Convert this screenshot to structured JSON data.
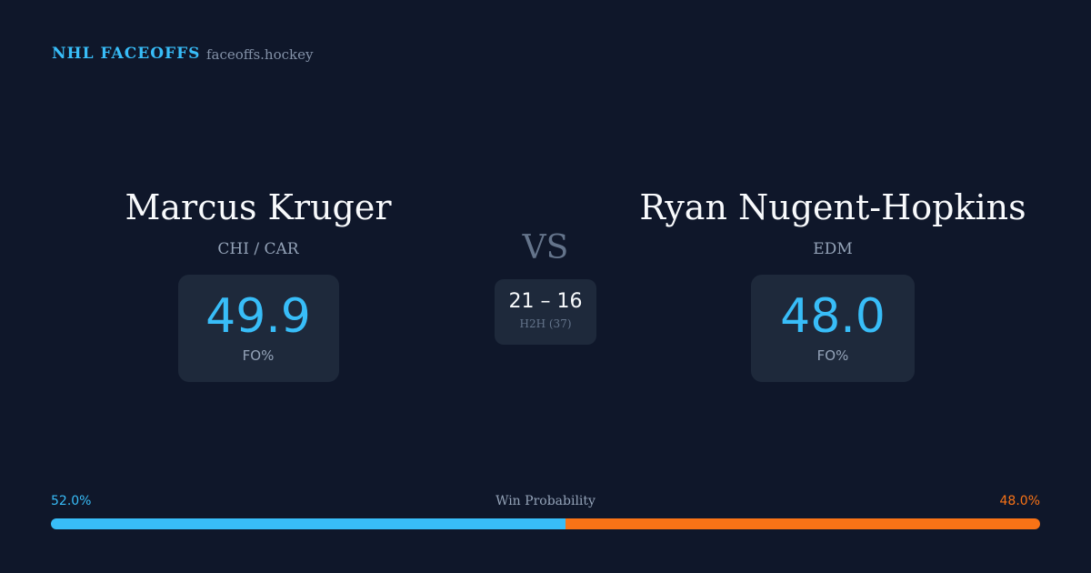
{
  "header": {
    "brand": "NHL FACEOFFS",
    "domain": "faceoffs.hockey"
  },
  "player_left": {
    "name": "Marcus Kruger",
    "team": "CHI / CAR",
    "fo_pct": "49.9",
    "fo_label": "FO%"
  },
  "vs": "VS",
  "head_to_head": {
    "score": "21 – 16",
    "label": "H2H (37)"
  },
  "player_right": {
    "name": "Ryan Nugent-Hopkins",
    "team": "EDM",
    "fo_pct": "48.0",
    "fo_label": "FO%"
  },
  "win_probability": {
    "label": "Win Probability",
    "left": {
      "value": 52.0,
      "label": "52.0%",
      "color": "#38bdf8"
    },
    "right": {
      "value": 48.0,
      "label": "48.0%",
      "color": "#f97316"
    }
  }
}
